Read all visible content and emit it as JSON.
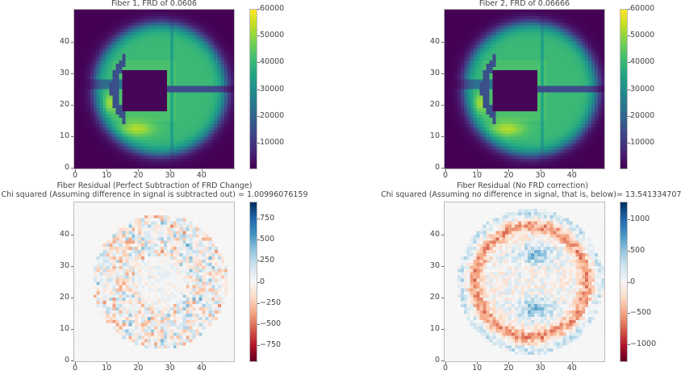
{
  "chart_data": [
    {
      "type": "heatmap",
      "id": "fiber1",
      "title": "Fiber 1, FRD of 0.0606",
      "subtitle": "",
      "colormap": "viridis",
      "grid_size": [
        50,
        50
      ],
      "xlim": [
        0,
        50
      ],
      "ylim": [
        0,
        50
      ],
      "xticks": [
        "0",
        "10",
        "20",
        "30",
        "40"
      ],
      "yticks": [
        "0",
        "10",
        "20",
        "30",
        "40"
      ],
      "clim": [
        0,
        60000
      ],
      "cbar_ticks": [
        "10000",
        "20000",
        "30000",
        "40000",
        "50000",
        "60000"
      ],
      "cbar_tick_values": [
        10000,
        20000,
        30000,
        40000,
        50000,
        60000
      ],
      "model": {
        "center": [
          27,
          25
        ],
        "radius": 20.5,
        "peak": 52000,
        "hole": [
          15,
          28,
          18,
          30
        ],
        "frd": 0.0606
      }
    },
    {
      "type": "heatmap",
      "id": "fiber2",
      "title": "Fiber 2, FRD of 0.06666",
      "subtitle": "",
      "colormap": "viridis",
      "grid_size": [
        50,
        50
      ],
      "xlim": [
        0,
        50
      ],
      "ylim": [
        0,
        50
      ],
      "xticks": [
        "0",
        "10",
        "20",
        "30",
        "40"
      ],
      "yticks": [
        "0",
        "10",
        "20",
        "30",
        "40"
      ],
      "clim": [
        0,
        60000
      ],
      "cbar_ticks": [
        "10000",
        "20000",
        "30000",
        "40000",
        "50000",
        "60000"
      ],
      "cbar_tick_values": [
        10000,
        20000,
        30000,
        40000,
        50000,
        60000
      ],
      "model": {
        "center": [
          27,
          25
        ],
        "radius": 20.7,
        "peak": 52000,
        "hole": [
          15,
          28,
          18,
          30
        ],
        "frd": 0.06666
      }
    },
    {
      "type": "heatmap",
      "id": "residual1",
      "title": "Fiber Residual (Perfect Subtraction of FRD Change)",
      "subtitle": "Chi squared (Assuming difference in signal is subtracted out) = 1.00996076159",
      "colormap": "RdBu",
      "grid_size": [
        50,
        50
      ],
      "xlim": [
        0,
        50
      ],
      "ylim": [
        0,
        50
      ],
      "xticks": [
        "0",
        "10",
        "20",
        "30",
        "40"
      ],
      "yticks": [
        "0",
        "10",
        "20",
        "30",
        "40"
      ],
      "clim": [
        -950,
        950
      ],
      "cbar_ticks": [
        "750",
        "500",
        "250",
        "0",
        "−250",
        "−500",
        "−750"
      ],
      "cbar_tick_values": [
        750,
        500,
        250,
        0,
        -250,
        -500,
        -750
      ],
      "model": {
        "pattern": "noise",
        "amplitude": 350,
        "seed": 7
      }
    },
    {
      "type": "heatmap",
      "id": "residual2",
      "title": "Fiber Residual (No FRD correction)",
      "subtitle": "Chi squared (Assuming no difference in signal, that is, below)= 13.541334707",
      "colormap": "RdBu",
      "grid_size": [
        50,
        50
      ],
      "xlim": [
        0,
        50
      ],
      "ylim": [
        0,
        50
      ],
      "xticks": [
        "0",
        "10",
        "20",
        "30",
        "40"
      ],
      "yticks": [
        "0",
        "10",
        "20",
        "30",
        "40"
      ],
      "clim": [
        -1290,
        1290
      ],
      "cbar_ticks": [
        "1000",
        "500",
        "0",
        "−500",
        "−1000"
      ],
      "cbar_tick_values": [
        1000,
        500,
        0,
        -500,
        -1000
      ],
      "model": {
        "pattern": "ring",
        "amplitude": 600,
        "seed": 13
      }
    }
  ]
}
